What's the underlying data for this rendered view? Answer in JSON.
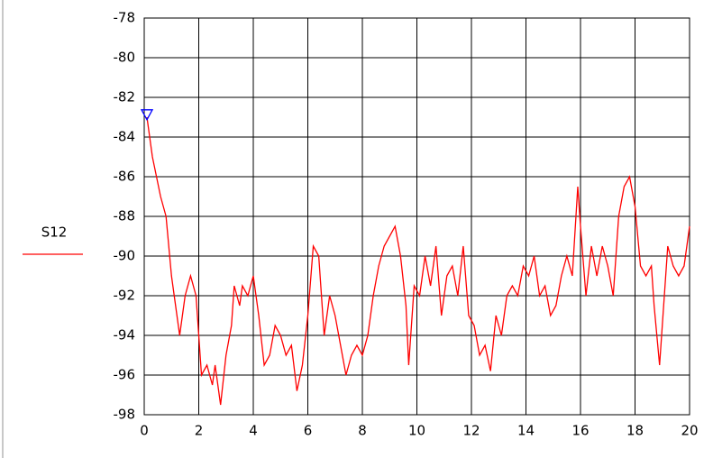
{
  "chart_data": {
    "type": "line",
    "x": [
      0.1,
      0.3,
      0.6,
      0.8,
      1.0,
      1.2,
      1.3,
      1.5,
      1.7,
      1.9,
      2.0,
      2.1,
      2.3,
      2.5,
      2.6,
      2.8,
      3.0,
      3.2,
      3.3,
      3.5,
      3.6,
      3.8,
      4.0,
      4.2,
      4.4,
      4.6,
      4.8,
      5.0,
      5.2,
      5.4,
      5.6,
      5.8,
      6.0,
      6.2,
      6.4,
      6.6,
      6.8,
      7.0,
      7.2,
      7.4,
      7.6,
      7.8,
      8.0,
      8.2,
      8.4,
      8.6,
      8.8,
      9.0,
      9.2,
      9.4,
      9.6,
      9.7,
      9.9,
      10.1,
      10.3,
      10.5,
      10.7,
      10.9,
      11.1,
      11.3,
      11.5,
      11.7,
      11.9,
      12.1,
      12.3,
      12.5,
      12.7,
      12.9,
      13.1,
      13.3,
      13.5,
      13.7,
      13.9,
      14.1,
      14.3,
      14.5,
      14.7,
      14.9,
      15.1,
      15.3,
      15.5,
      15.7,
      15.9,
      16.0,
      16.2,
      16.4,
      16.6,
      16.8,
      17.0,
      17.2,
      17.4,
      17.6,
      17.8,
      18.0,
      18.2,
      18.4,
      18.6,
      18.7,
      18.9,
      19.0,
      19.2,
      19.4,
      19.6,
      19.8,
      20.0
    ],
    "series": [
      {
        "name": "S12",
        "color": "#ff0000",
        "values": [
          -83,
          -85,
          -87,
          -88,
          -91,
          -93,
          -94,
          -92,
          -91,
          -92,
          -94,
          -96,
          -95.5,
          -96.5,
          -95.5,
          -97.5,
          -95,
          -93.5,
          -91.5,
          -92.5,
          -91.5,
          -92,
          -91,
          -93,
          -95.5,
          -95,
          -93.5,
          -94,
          -95,
          -94.5,
          -96.8,
          -95.5,
          -93,
          -89.5,
          -90,
          -94,
          -92,
          -93,
          -94.5,
          -96,
          -95,
          -94.5,
          -95,
          -94,
          -92,
          -90.5,
          -89.5,
          -89,
          -88.5,
          -90,
          -92.5,
          -95.5,
          -91.5,
          -92,
          -90,
          -91.5,
          -89.5,
          -93,
          -91,
          -90.5,
          -92,
          -89.5,
          -93,
          -93.5,
          -95,
          -94.5,
          -95.8,
          -93,
          -94,
          -92,
          -91.5,
          -92,
          -90.5,
          -91,
          -90,
          -92,
          -91.5,
          -93,
          -92.5,
          -91,
          -90,
          -91,
          -86.5,
          -88.5,
          -92,
          -89.5,
          -91,
          -89.5,
          -90.5,
          -92,
          -88,
          -86.5,
          -86,
          -87.5,
          -90.5,
          -91,
          -90.5,
          -92.5,
          -95.5,
          -93.5,
          -89.5,
          -90.5,
          -91,
          -90.5,
          -88.5
        ]
      }
    ],
    "marker": {
      "x": 0.1,
      "y": -82.9,
      "color": "#0000ff"
    },
    "xlim": [
      0,
      20
    ],
    "xticks": [
      0,
      2,
      4,
      6,
      8,
      10,
      12,
      14,
      16,
      18,
      20
    ],
    "ylim": [
      -98,
      -78
    ],
    "yticks": [
      -98,
      -96,
      -94,
      -92,
      -90,
      -88,
      -86,
      -84,
      -82,
      -80,
      -78
    ],
    "grid": true
  }
}
